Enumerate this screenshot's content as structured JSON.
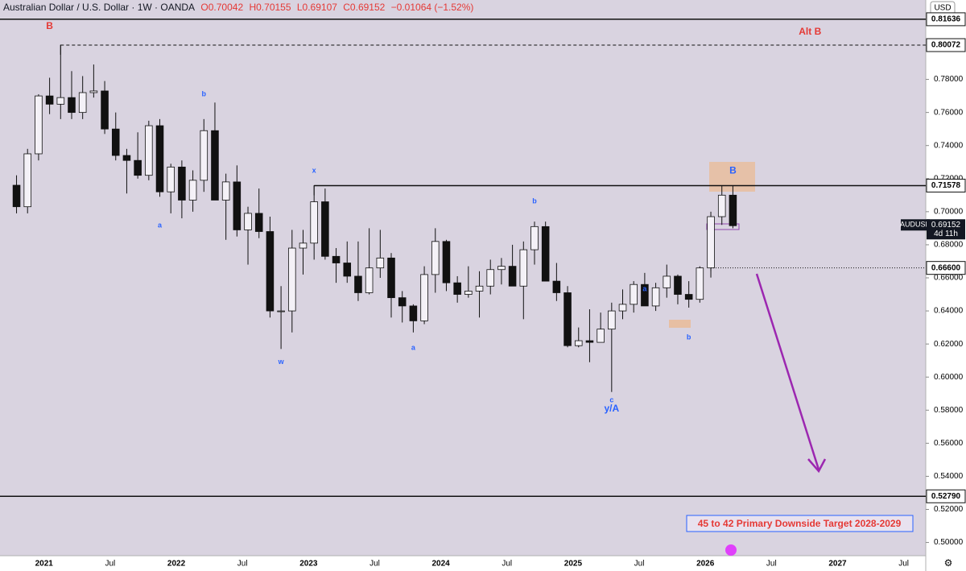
{
  "chart_data": {
    "type": "candlestick",
    "title": "Australian Dollar / U.S. Dollar · 1W · OANDA",
    "ohlc_header": [
      "O0.70042",
      "H0.70155",
      "L0.69107",
      "C0.69152",
      "−0.01064 (−1.52%)"
    ],
    "currency": "USD",
    "x": [
      "2020-10",
      "2020-11",
      "2020-12",
      "2021-01",
      "2021-02",
      "2021-03",
      "2021-04",
      "2021-05",
      "2021-06",
      "2021-07",
      "2021-08",
      "2021-09",
      "2021-10",
      "2021-11",
      "2021-12",
      "2022-01",
      "2022-02",
      "2022-03",
      "2022-04",
      "2022-05",
      "2022-06",
      "2022-07",
      "2022-08",
      "2022-09",
      "2022-10",
      "2022-11",
      "2022-12",
      "2023-01",
      "2023-02",
      "2023-03",
      "2023-04",
      "2023-05",
      "2023-06",
      "2023-07",
      "2023-08",
      "2023-09",
      "2023-10",
      "2023-11",
      "2023-12",
      "2024-01",
      "2024-02",
      "2024-03",
      "2024-04",
      "2024-05",
      "2024-06",
      "2024-07",
      "2024-08",
      "2024-09",
      "2024-10",
      "2024-11",
      "2024-12",
      "2025-01",
      "2025-02",
      "2025-03",
      "2025-04",
      "2025-05",
      "2025-06",
      "2025-07",
      "2025-08",
      "2025-09",
      "2025-10",
      "2025-11",
      "2025-12",
      "2026-01",
      "2026-02",
      "2026-03"
    ],
    "open": [
      0.716,
      0.703,
      0.735,
      0.77,
      0.765,
      0.769,
      0.76,
      0.772,
      0.773,
      0.75,
      0.734,
      0.731,
      0.722,
      0.752,
      0.712,
      0.727,
      0.707,
      0.719,
      0.749,
      0.707,
      0.718,
      0.689,
      0.699,
      0.688,
      0.64,
      0.64,
      0.678,
      0.681,
      0.706,
      0.673,
      0.669,
      0.661,
      0.651,
      0.666,
      0.672,
      0.648,
      0.643,
      0.634,
      0.662,
      0.682,
      0.657,
      0.65,
      0.652,
      0.655,
      0.665,
      0.667,
      0.655,
      0.677,
      0.691,
      0.658,
      0.651,
      0.619,
      0.622,
      0.621,
      0.629,
      0.64,
      0.644,
      0.656,
      0.643,
      0.654,
      0.661,
      0.65,
      0.647,
      0.666,
      0.697,
      0.71
    ],
    "high": [
      0.722,
      0.738,
      0.771,
      0.781,
      0.801,
      0.785,
      0.782,
      0.789,
      0.779,
      0.76,
      0.738,
      0.748,
      0.755,
      0.756,
      0.729,
      0.731,
      0.725,
      0.756,
      0.766,
      0.723,
      0.728,
      0.703,
      0.714,
      0.697,
      0.655,
      0.689,
      0.689,
      0.716,
      0.714,
      0.678,
      0.682,
      0.682,
      0.69,
      0.689,
      0.675,
      0.652,
      0.644,
      0.667,
      0.69,
      0.683,
      0.661,
      0.667,
      0.664,
      0.671,
      0.672,
      0.68,
      0.682,
      0.694,
      0.694,
      0.669,
      0.655,
      0.63,
      0.641,
      0.639,
      0.645,
      0.653,
      0.658,
      0.663,
      0.657,
      0.668,
      0.662,
      0.658,
      0.667,
      0.7,
      0.716,
      0.7156
    ],
    "low": [
      0.699,
      0.699,
      0.731,
      0.759,
      0.756,
      0.756,
      0.756,
      0.769,
      0.747,
      0.731,
      0.711,
      0.72,
      0.719,
      0.709,
      0.699,
      0.696,
      0.7,
      0.712,
      0.707,
      0.683,
      0.685,
      0.668,
      0.684,
      0.636,
      0.617,
      0.627,
      0.662,
      0.671,
      0.671,
      0.657,
      0.657,
      0.646,
      0.65,
      0.66,
      0.636,
      0.633,
      0.627,
      0.632,
      0.651,
      0.652,
      0.645,
      0.648,
      0.636,
      0.65,
      0.656,
      0.655,
      0.635,
      0.668,
      0.658,
      0.646,
      0.618,
      0.618,
      0.609,
      0.623,
      0.591,
      0.635,
      0.639,
      0.643,
      0.64,
      0.648,
      0.644,
      0.642,
      0.645,
      0.664,
      0.692,
      0.69
    ],
    "close": [
      0.703,
      0.735,
      0.77,
      0.765,
      0.769,
      0.76,
      0.772,
      0.773,
      0.75,
      0.734,
      0.731,
      0.722,
      0.752,
      0.712,
      0.727,
      0.707,
      0.719,
      0.749,
      0.707,
      0.718,
      0.689,
      0.699,
      0.688,
      0.64,
      0.64,
      0.678,
      0.681,
      0.706,
      0.673,
      0.669,
      0.661,
      0.651,
      0.666,
      0.672,
      0.648,
      0.643,
      0.634,
      0.662,
      0.682,
      0.657,
      0.65,
      0.652,
      0.655,
      0.665,
      0.667,
      0.655,
      0.677,
      0.691,
      0.658,
      0.651,
      0.619,
      0.622,
      0.621,
      0.629,
      0.64,
      0.644,
      0.656,
      0.643,
      0.654,
      0.661,
      0.65,
      0.647,
      0.666,
      0.697,
      0.71,
      0.69152
    ],
    "xlim": [
      "2020-09",
      "2027-09"
    ],
    "xticks": [
      {
        "value": "2021-01",
        "label": "2021"
      },
      {
        "value": "2021-07",
        "label": "Jul"
      },
      {
        "value": "2022-01",
        "label": "2022"
      },
      {
        "value": "2022-07",
        "label": "Jul"
      },
      {
        "value": "2023-01",
        "label": "2023"
      },
      {
        "value": "2023-07",
        "label": "Jul"
      },
      {
        "value": "2024-01",
        "label": "2024"
      },
      {
        "value": "2024-07",
        "label": "Jul"
      },
      {
        "value": "2025-01",
        "label": "2025"
      },
      {
        "value": "2025-07",
        "label": "Jul"
      },
      {
        "value": "2026-01",
        "label": "2026"
      },
      {
        "value": "2026-07",
        "label": "Jul"
      },
      {
        "value": "2027-01",
        "label": "2027"
      },
      {
        "value": "2027-07",
        "label": "Jul"
      }
    ],
    "ylim": [
      0.492,
      0.828
    ],
    "yticks": [
      {
        "value": 0.5,
        "label": "0.50000"
      },
      {
        "value": 0.52,
        "label": "0.52000"
      },
      {
        "value": 0.54,
        "label": "0.54000"
      },
      {
        "value": 0.56,
        "label": "0.56000"
      },
      {
        "value": 0.58,
        "label": "0.58000"
      },
      {
        "value": 0.6,
        "label": "0.60000"
      },
      {
        "value": 0.62,
        "label": "0.62000"
      },
      {
        "value": 0.64,
        "label": "0.64000"
      },
      {
        "value": 0.66,
        "label": "0.66000"
      },
      {
        "value": 0.68,
        "label": "0.68000"
      },
      {
        "value": 0.7,
        "label": "0.70000"
      },
      {
        "value": 0.72,
        "label": "0.72000"
      },
      {
        "value": 0.74,
        "label": "0.74000"
      },
      {
        "value": 0.76,
        "label": "0.76000"
      },
      {
        "value": 0.78,
        "label": "0.78000"
      }
    ],
    "levels": [
      {
        "value": 0.81636,
        "style": "solid"
      },
      {
        "value": 0.80072,
        "style": "dashed",
        "from": "2021-02"
      },
      {
        "value": 0.71578,
        "style": "solid",
        "from": "2023-01"
      },
      {
        "value": {
          "value": 0.666,
          "label": "0.66600"
        },
        "style": "dotted",
        "from": "2026-01"
      },
      {
        "value": {
          "value": 0.5279,
          "label": "0.52790"
        },
        "style": "solid"
      }
    ],
    "last_price": {
      "symbol": "AUDUSD",
      "value": 0.69152,
      "countdown": "4d 11h"
    },
    "annotations": [
      {
        "text": "B",
        "x": "2021-01",
        "y": 0.812,
        "color": "#e53935"
      },
      {
        "text": "Alt B",
        "x": "2026-10",
        "y": 0.8085,
        "color": "#e53935"
      },
      {
        "text": "b",
        "x": "2022-03",
        "y": 0.771,
        "color": "#2962ff"
      },
      {
        "text": "a",
        "x": "2021-11",
        "y": 0.6917,
        "color": "#2962ff"
      },
      {
        "text": "w",
        "x": "2022-10",
        "y": 0.609,
        "color": "#2962ff"
      },
      {
        "text": "x",
        "x": "2023-01",
        "y": 0.7247,
        "color": "#2962ff"
      },
      {
        "text": "a",
        "x": "2023-10",
        "y": 0.6176,
        "color": "#2962ff"
      },
      {
        "text": "b",
        "x": "2024-09",
        "y": 0.7063,
        "color": "#2962ff"
      },
      {
        "text": "c",
        "x": "2025-04",
        "y": 0.586,
        "color": "#2962ff"
      },
      {
        "text": "y/A",
        "x": "2025-04",
        "y": 0.5807,
        "color": "#2962ff"
      },
      {
        "text": "a",
        "x": "2025-07",
        "y": 0.6532,
        "color": "#2962ff"
      },
      {
        "text": "b",
        "x": "2025-11",
        "y": 0.624,
        "color": "#2962ff"
      },
      {
        "text": "B",
        "x": "2026-03",
        "y": 0.7247,
        "color": "#2962ff"
      }
    ],
    "target_note": "45 to 42 Primary Downside Target 2028-2029"
  }
}
